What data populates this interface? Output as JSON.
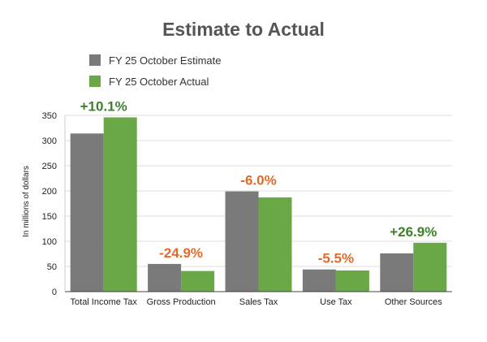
{
  "chart_data": {
    "type": "bar",
    "title": "Estimate to Actual",
    "ylabel": "In millions of dollars",
    "xlabel": "",
    "ylim": [
      0,
      350
    ],
    "yticks": [
      0,
      50,
      100,
      150,
      200,
      250,
      300,
      350
    ],
    "grid": true,
    "legend_position": "top-left",
    "categories": [
      "Total Income Tax",
      "Gross Production",
      "Sales Tax",
      "Use Tax",
      "Other Sources"
    ],
    "series": [
      {
        "name": "FY 25 October Estimate",
        "color": "#7a7a7a",
        "values": [
          314,
          55,
          199,
          44,
          76
        ]
      },
      {
        "name": "FY 25 October Actual",
        "color": "#6aa746",
        "values": [
          346,
          41,
          187,
          42,
          97
        ]
      }
    ],
    "annotations": [
      {
        "category": "Total Income Tax",
        "text": "+10.1%",
        "color": "#3f7f2a"
      },
      {
        "category": "Gross Production",
        "text": "-24.9%",
        "color": "#e06a2c"
      },
      {
        "category": "Sales Tax",
        "text": "-6.0%",
        "color": "#e06a2c"
      },
      {
        "category": "Use Tax",
        "text": "-5.5%",
        "color": "#e06a2c"
      },
      {
        "category": "Other Sources",
        "text": "+26.9%",
        "color": "#3f7f2a"
      }
    ]
  }
}
